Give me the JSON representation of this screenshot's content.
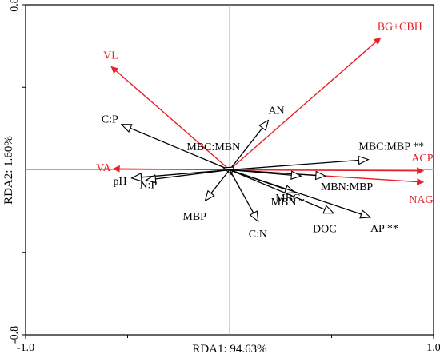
{
  "chart_data": {
    "type": "biplot",
    "xlabel": "RDA1: 94.63%",
    "ylabel": "RDA2: 1.60%",
    "xlim": [
      -1.0,
      1.0
    ],
    "ylim": [
      -0.8,
      0.8
    ],
    "xticks": [
      {
        "value": -1.0,
        "label": "-1.0"
      },
      {
        "value": 1.0,
        "label": "1.0"
      }
    ],
    "yticks": [
      {
        "value": 0.8,
        "label": "0.8"
      },
      {
        "value": -0.8,
        "label": "-0.8"
      }
    ],
    "minor_xticks": [
      -0.5,
      0.5
    ],
    "minor_yticks": [
      -0.4,
      0.4
    ],
    "colors": {
      "response": "#e8212a",
      "explanatory": "#000000",
      "zero_lines": "#aaaaaa"
    },
    "response_vectors": [
      {
        "name": "BG+CBH",
        "x": 0.74,
        "y": 0.64
      },
      {
        "name": "VL",
        "x": -0.58,
        "y": 0.5
      },
      {
        "name": "ACP",
        "x": 0.95,
        "y": -0.005
      },
      {
        "name": "NAG",
        "x": 0.95,
        "y": -0.06
      },
      {
        "name": "VA",
        "x": -0.57,
        "y": 0.005
      }
    ],
    "explanatory_vectors": [
      {
        "name": "C:P",
        "x": -0.53,
        "y": 0.22
      },
      {
        "name": "AN",
        "x": 0.19,
        "y": 0.24
      },
      {
        "name": "MBC:MBN",
        "x": -0.03,
        "y": 0.01
      },
      {
        "name": "MBC:MBP **",
        "x": 0.68,
        "y": 0.05
      },
      {
        "name": "pH",
        "x": -0.48,
        "y": -0.04
      },
      {
        "name": "N:P",
        "x": -0.41,
        "y": -0.05
      },
      {
        "name": "MBP",
        "x": -0.12,
        "y": -0.15
      },
      {
        "name": "C:N",
        "x": 0.14,
        "y": -0.25
      },
      {
        "name": "MBN:MBP",
        "x": 0.47,
        "y": -0.03
      },
      {
        "name": "MBC",
        "x": 0.35,
        "y": -0.03
      },
      {
        "name": "MBN *",
        "x": 0.32,
        "y": -0.11
      },
      {
        "name": "DOC",
        "x": 0.51,
        "y": -0.21
      },
      {
        "name": "AP **",
        "x": 0.69,
        "y": -0.23
      }
    ]
  }
}
